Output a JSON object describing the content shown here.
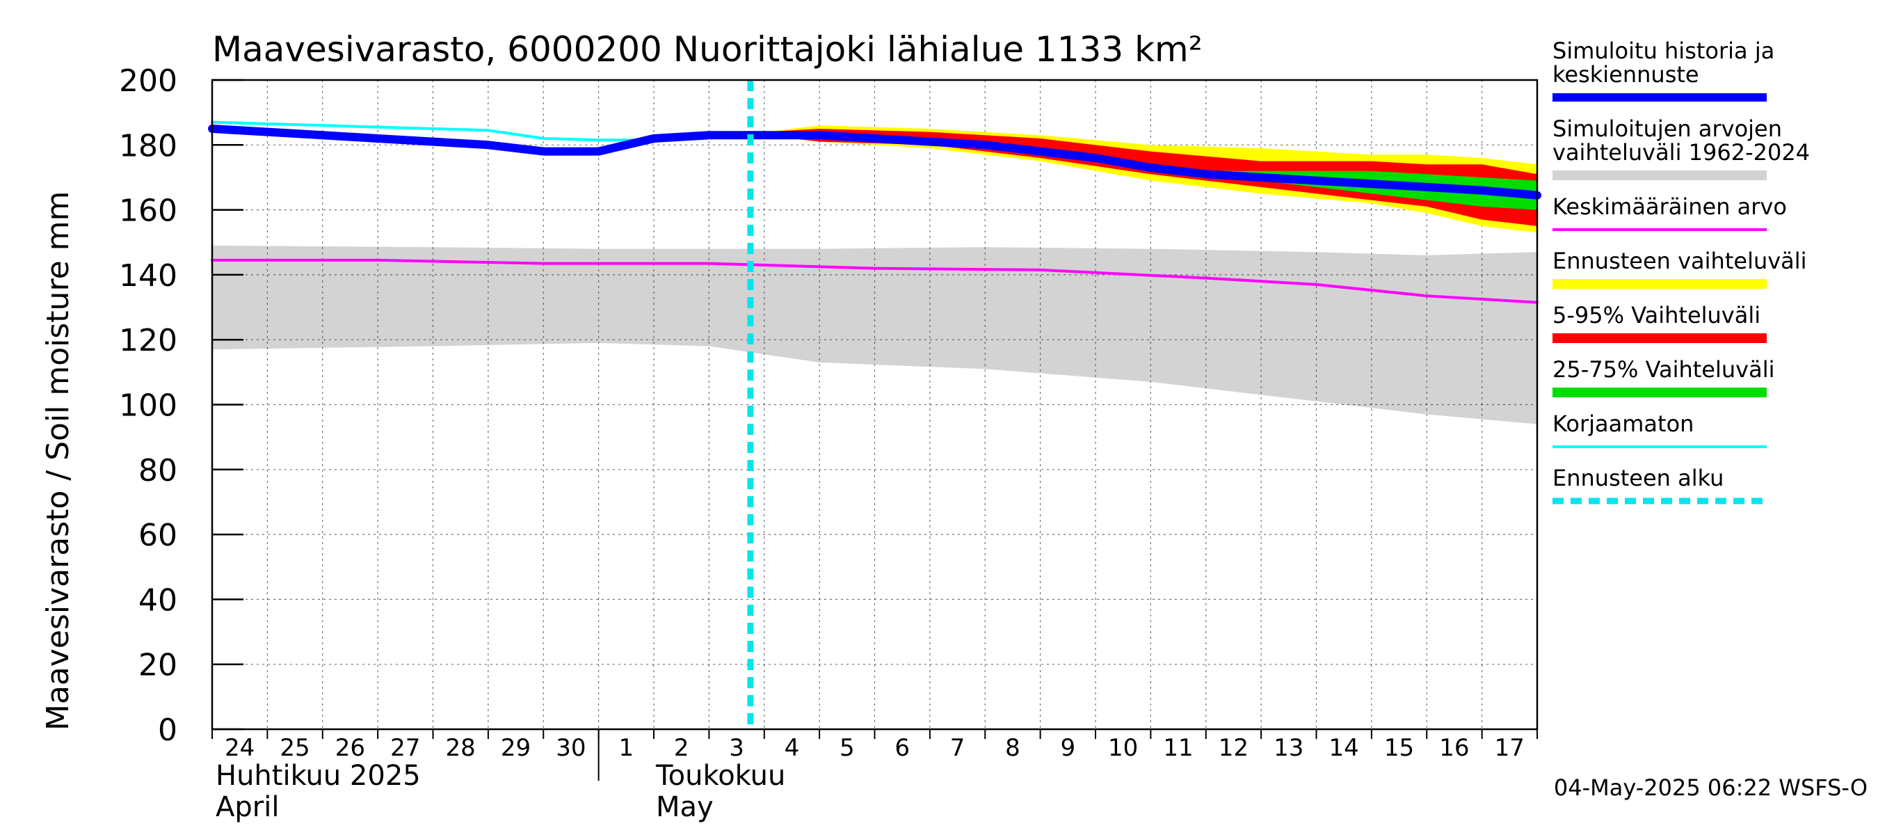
{
  "chart_data": {
    "type": "area",
    "title": "Maavesivarasto, 6000200 Nuorittajoki lähialue 1133 km²",
    "ylabel": "Maavesivarasto / Soil moisture   mm",
    "ylim": [
      0,
      200
    ],
    "yticks": [
      0,
      20,
      40,
      60,
      80,
      100,
      120,
      140,
      160,
      180,
      200
    ],
    "grid": true,
    "legend_placement": "right",
    "x_day_labels": [
      "24",
      "25",
      "26",
      "27",
      "28",
      "29",
      "30",
      "1",
      "2",
      "3",
      "4",
      "5",
      "6",
      "7",
      "8",
      "9",
      "10",
      "11",
      "12",
      "13",
      "14",
      "15",
      "16",
      "17"
    ],
    "month_labels": [
      {
        "line1": "Huhtikuu  2025",
        "line2": "April"
      },
      {
        "line1": "Toukokuu",
        "line2": "May"
      }
    ],
    "forecast_start": "2025-05-03 18:00",
    "colors": {
      "history": "#0000ff",
      "range_1962_2024": "#d3d3d3",
      "mean": "#ff00ff",
      "forecast_range": "#ffff00",
      "p5_95": "#ff0000",
      "p25_75": "#00dd00",
      "uncorrected": "#00ffff",
      "forecast_start": "#00e5ee"
    },
    "series": [
      {
        "name": "Simuloitu historia ja keskiennuste",
        "x": [
          "2025-04-24",
          "2025-04-25",
          "2025-04-26",
          "2025-04-27",
          "2025-04-28",
          "2025-04-29",
          "2025-04-30",
          "2025-05-01",
          "2025-05-02",
          "2025-05-03",
          "2025-05-04",
          "2025-05-05",
          "2025-05-06",
          "2025-05-07",
          "2025-05-08",
          "2025-05-09",
          "2025-05-10",
          "2025-05-11",
          "2025-05-12",
          "2025-05-13",
          "2025-05-14",
          "2025-05-15",
          "2025-05-16",
          "2025-05-17",
          "2025-05-18"
        ],
        "values": [
          185,
          184,
          183,
          182,
          181,
          180,
          178,
          178,
          182,
          183,
          183,
          183,
          182,
          181,
          180,
          178,
          176,
          173,
          171,
          170,
          169,
          168,
          167,
          166,
          164.5
        ]
      },
      {
        "name": "Korjaamaton",
        "x": [
          "2025-04-24",
          "2025-04-25",
          "2025-04-26",
          "2025-04-27",
          "2025-04-28",
          "2025-04-29",
          "2025-04-30",
          "2025-05-01",
          "2025-05-02"
        ],
        "values": [
          187,
          186.5,
          186,
          185.5,
          185,
          184.5,
          182,
          181.5,
          181.5
        ]
      },
      {
        "name": "Keskimääräinen arvo",
        "x": [
          "2025-04-24",
          "2025-04-27",
          "2025-04-30",
          "2025-05-03",
          "2025-05-06",
          "2025-05-09",
          "2025-05-12",
          "2025-05-14",
          "2025-05-16",
          "2025-05-18"
        ],
        "values": [
          144.5,
          144.5,
          143.5,
          143.5,
          142,
          141.5,
          139,
          137,
          133.5,
          131.5
        ]
      },
      {
        "name": "Simuloitujen arvojen vaihteluväli 1962-2024",
        "x": [
          "2025-04-24",
          "2025-04-28",
          "2025-05-01",
          "2025-05-03",
          "2025-05-05",
          "2025-05-08",
          "2025-05-11",
          "2025-05-14",
          "2025-05-16",
          "2025-05-18"
        ],
        "upper": [
          149,
          148.5,
          148,
          148,
          148,
          148.5,
          148,
          147,
          146,
          147
        ],
        "lower": [
          117,
          118,
          119,
          118,
          113,
          111,
          107,
          101,
          97,
          94
        ]
      },
      {
        "name": "Ennusteen vaihteluväli",
        "x": [
          "2025-05-04",
          "2025-05-05",
          "2025-05-07",
          "2025-05-09",
          "2025-05-11",
          "2025-05-13",
          "2025-05-15",
          "2025-05-16",
          "2025-05-17",
          "2025-05-18"
        ],
        "upper": [
          184,
          186,
          185,
          183,
          180,
          179,
          177,
          177,
          176,
          174
        ],
        "lower": [
          183,
          181,
          179,
          175,
          169,
          165,
          162,
          159,
          155,
          153
        ]
      },
      {
        "name": "5-95% Vaihteluväli",
        "x": [
          "2025-05-04",
          "2025-05-05",
          "2025-05-07",
          "2025-05-09",
          "2025-05-11",
          "2025-05-13",
          "2025-05-15",
          "2025-05-16",
          "2025-05-17",
          "2025-05-18"
        ],
        "upper": [
          184,
          185,
          184,
          182,
          178,
          175,
          175,
          174,
          174,
          171
        ],
        "lower": [
          183,
          181,
          180,
          176,
          171,
          167,
          163,
          161,
          157,
          155
        ]
      },
      {
        "name": "25-75% Vaihteluväli",
        "x": [
          "2025-05-12",
          "2025-05-13",
          "2025-05-14",
          "2025-05-15",
          "2025-05-16",
          "2025-05-17",
          "2025-05-18"
        ],
        "upper": [
          172,
          172,
          172,
          172,
          171,
          170,
          169
        ],
        "lower": [
          171,
          169,
          167,
          165,
          163,
          161,
          160
        ]
      }
    ]
  },
  "legend": [
    {
      "label": "Simuloitu historia ja keskiennuste",
      "lines": [
        "Simuloitu historia ja",
        "keskiennuste"
      ],
      "color": "#0000ff",
      "style": "thick"
    },
    {
      "label": "Simuloitujen arvojen vaihteluväli 1962-2024",
      "lines": [
        "Simuloitujen arvojen",
        "vaihteluväli 1962-2024"
      ],
      "color": "#d3d3d3",
      "style": "band"
    },
    {
      "label": "Keskimääräinen arvo",
      "lines": [
        "Keskimääräinen arvo"
      ],
      "color": "#ff00ff",
      "style": "thin"
    },
    {
      "label": "Ennusteen vaihteluväli",
      "lines": [
        "Ennusteen vaihteluväli"
      ],
      "color": "#ffff00",
      "style": "band"
    },
    {
      "label": "5-95% Vaihteluväli",
      "lines": [
        "5-95% Vaihteluväli"
      ],
      "color": "#ff0000",
      "style": "band"
    },
    {
      "label": "25-75% Vaihteluväli",
      "lines": [
        "25-75% Vaihteluväli"
      ],
      "color": "#00dd00",
      "style": "band"
    },
    {
      "label": "Korjaamaton",
      "lines": [
        "Korjaamaton"
      ],
      "color": "#00ffff",
      "style": "thin"
    },
    {
      "label": "Ennusteen alku",
      "lines": [
        "Ennusteen alku"
      ],
      "color": "#00e5ee",
      "style": "dashed"
    }
  ],
  "footer": "04-May-2025 06:22 WSFS-O"
}
